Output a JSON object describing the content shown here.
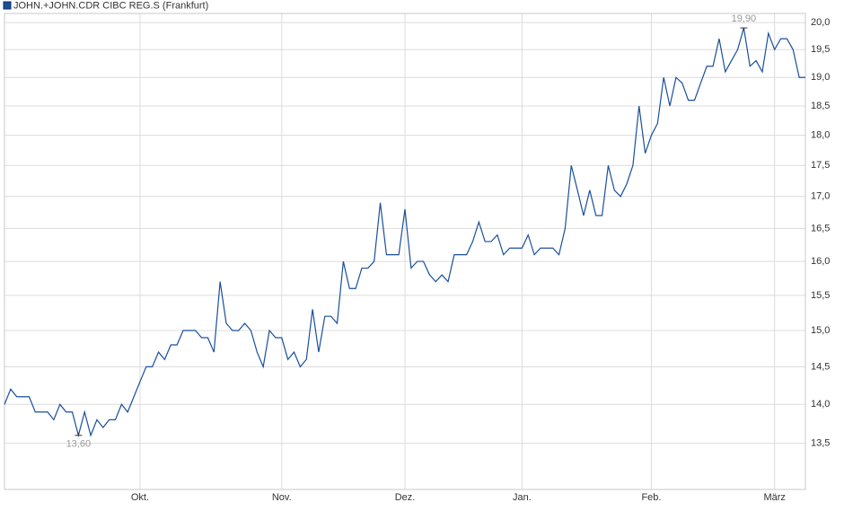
{
  "chart_data": {
    "type": "line",
    "log_scale": true,
    "grid": true,
    "categories": [
      null,
      null,
      null,
      null,
      null,
      null,
      null,
      null,
      null,
      null,
      null,
      null,
      null,
      null,
      null,
      null,
      null,
      null,
      null,
      null,
      null,
      null,
      "Okt.",
      null,
      null,
      null,
      null,
      null,
      null,
      null,
      null,
      null,
      null,
      null,
      null,
      null,
      null,
      null,
      null,
      null,
      null,
      null,
      null,
      null,
      null,
      "Nov.",
      null,
      null,
      null,
      null,
      null,
      null,
      null,
      null,
      null,
      null,
      null,
      null,
      null,
      null,
      null,
      null,
      null,
      null,
      null,
      "Dez.",
      null,
      null,
      null,
      null,
      null,
      null,
      null,
      null,
      null,
      null,
      null,
      null,
      null,
      null,
      null,
      null,
      null,
      null,
      "Jan.",
      null,
      null,
      null,
      null,
      null,
      null,
      null,
      null,
      null,
      null,
      null,
      null,
      null,
      null,
      null,
      null,
      null,
      null,
      null,
      null,
      "Feb.",
      null,
      null,
      null,
      null,
      null,
      null,
      null,
      null,
      null,
      null,
      null,
      null,
      null,
      null,
      null,
      null,
      null,
      null,
      null,
      "März",
      null,
      null,
      null,
      null,
      null
    ],
    "series": [
      {
        "name": "JOHN.+JOHN.CDR CIBC REG.S (Frankfurt)",
        "color": "#1a4f9c",
        "values": [
          14.0,
          14.2,
          14.1,
          14.1,
          14.1,
          13.9,
          13.9,
          13.9,
          13.8,
          14.0,
          13.9,
          13.9,
          13.6,
          13.9,
          13.6,
          13.8,
          13.7,
          13.8,
          13.8,
          14.0,
          13.9,
          14.1,
          14.3,
          14.5,
          14.5,
          14.7,
          14.6,
          14.8,
          14.8,
          15.0,
          15.0,
          15.0,
          14.9,
          14.9,
          14.7,
          15.7,
          15.1,
          15.0,
          15.0,
          15.1,
          15.0,
          14.7,
          14.5,
          15.0,
          14.9,
          14.9,
          14.6,
          14.7,
          14.5,
          14.6,
          15.3,
          14.7,
          15.2,
          15.2,
          15.1,
          16.0,
          15.6,
          15.6,
          15.9,
          15.9,
          16.0,
          16.9,
          16.1,
          16.1,
          16.1,
          16.8,
          15.9,
          16.0,
          16.0,
          15.8,
          15.7,
          15.8,
          15.7,
          16.1,
          16.1,
          16.1,
          16.3,
          16.6,
          16.3,
          16.3,
          16.4,
          16.1,
          16.2,
          16.2,
          16.2,
          16.4,
          16.1,
          16.2,
          16.2,
          16.2,
          16.1,
          16.5,
          17.5,
          17.1,
          16.7,
          17.1,
          16.7,
          16.7,
          17.5,
          17.1,
          17.0,
          17.2,
          17.5,
          18.5,
          17.7,
          18.0,
          18.2,
          19.0,
          18.5,
          19.0,
          18.9,
          18.6,
          18.6,
          18.9,
          19.2,
          19.2,
          19.7,
          19.1,
          19.3,
          19.5,
          19.9,
          19.2,
          19.3,
          19.1,
          19.8,
          19.5,
          19.7,
          19.7,
          19.5,
          19.0,
          19.0
        ]
      }
    ],
    "annotations": [
      {
        "value": 13.6,
        "label": "13,60"
      },
      {
        "value": 19.9,
        "label": "19,90"
      }
    ],
    "ylim": [
      12.93,
      20.17
    ],
    "yticks": [
      {
        "value": 13.5,
        "label": "13,5"
      },
      {
        "value": 14.0,
        "label": "14,0"
      },
      {
        "value": 14.5,
        "label": "14,5"
      },
      {
        "value": 15.0,
        "label": "15,0"
      },
      {
        "value": 15.5,
        "label": "15,5"
      },
      {
        "value": 16.0,
        "label": "16,0"
      },
      {
        "value": 16.5,
        "label": "16,5"
      },
      {
        "value": 17.0,
        "label": "17,0"
      },
      {
        "value": 17.5,
        "label": "17,5"
      },
      {
        "value": 18.0,
        "label": "18,0"
      },
      {
        "value": 18.5,
        "label": "18,5"
      },
      {
        "value": 19.0,
        "label": "19,0"
      },
      {
        "value": 19.5,
        "label": "19,5"
      },
      {
        "value": 20.0,
        "label": "20,0"
      }
    ]
  }
}
